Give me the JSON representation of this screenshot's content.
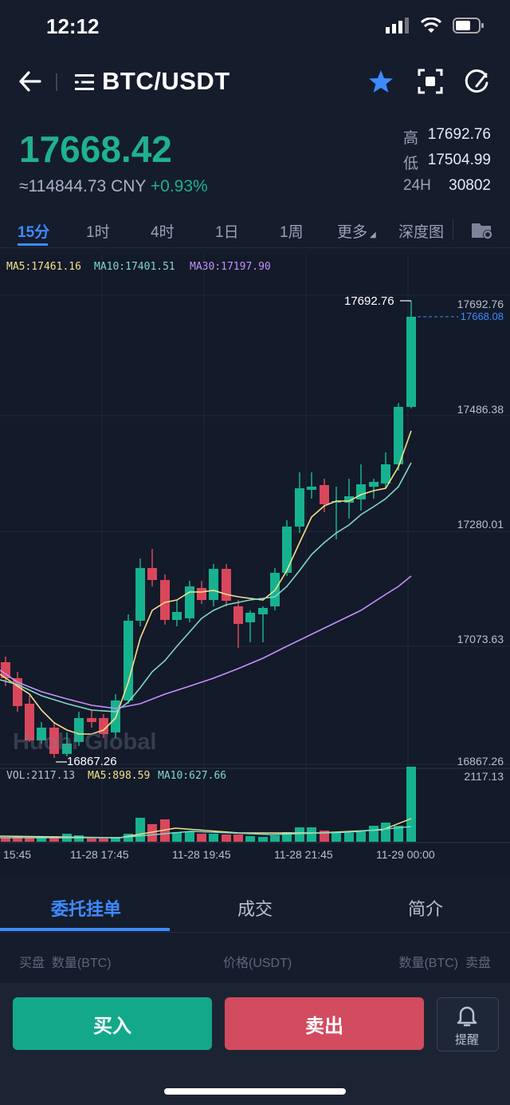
{
  "status": {
    "time": "12:12"
  },
  "header": {
    "pair": "BTC/USDT"
  },
  "price": {
    "last": "17668.42",
    "cny": "≈114844.73 CNY",
    "change": "+0.93%",
    "stats": [
      {
        "label": "高",
        "value": "17692.76"
      },
      {
        "label": "低",
        "value": "17504.99"
      },
      {
        "label": "24H",
        "value": "30802"
      }
    ]
  },
  "timeframes": [
    "15分",
    "1时",
    "4时",
    "1日",
    "1周",
    "更多",
    "深度图"
  ],
  "chart": {
    "ma_legend": {
      "ma5": "MA5:17461.16",
      "ma10": "MA10:17401.51",
      "ma30": "MA30:17197.90"
    },
    "high_label": "17692.76",
    "low_label": "16867.26",
    "current_price": "17668.08",
    "y_ticks": [
      "17692.76",
      "17486.38",
      "17280.01",
      "17073.63",
      "16867.26"
    ],
    "vol_legend": {
      "vol": "VOL:2117.13",
      "ma5": "MA5:898.59",
      "ma10": "MA10:627.66"
    },
    "vol_max": "2117.13",
    "x_ticks": [
      "15:45",
      "11-28 17:45",
      "11-28 19:45",
      "11-28 21:45",
      "11-29 00:00"
    ],
    "watermark": "Huobi Global",
    "colors": {
      "up": "#16b28f",
      "down": "#d9475c",
      "ma5": "#f3e08a",
      "ma10": "#7fd8c8",
      "ma30": "#c490ff",
      "accent": "#3d8bff"
    }
  },
  "bottom_tabs": [
    "委托挂单",
    "成交",
    "简介"
  ],
  "orderbook_header": {
    "left": "买盘  数量(BTC)",
    "mid": "价格(USDT)",
    "right": "数量(BTC)  卖盘"
  },
  "actions": {
    "buy": "买入",
    "sell": "卖出",
    "alert": "提醒"
  }
}
